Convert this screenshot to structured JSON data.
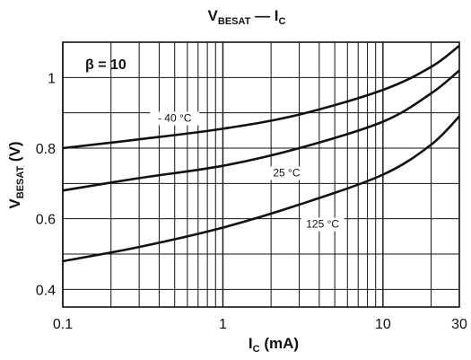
{
  "chart_data": {
    "type": "line",
    "title": {
      "main": "V",
      "sub": "BESAT",
      "sep": " — I",
      "sub2": "C"
    },
    "xlabel": {
      "main": "I",
      "sub": "C",
      "suffix": " (mA)"
    },
    "ylabel": {
      "main": "V",
      "sub": "BESAT",
      "suffix": " (V)"
    },
    "xscale": "log",
    "xlim": [
      0.1,
      30
    ],
    "ylim": [
      0.35,
      1.1
    ],
    "xticks": [
      0.1,
      1,
      10,
      30
    ],
    "xtick_labels": [
      "0.1",
      "1",
      "10",
      "30"
    ],
    "yticks": [
      0.4,
      0.6,
      0.8,
      1.0
    ],
    "ytick_labels": [
      "0.4",
      "0.6",
      "0.8",
      "1"
    ],
    "grid": true,
    "annotation": "β = 10",
    "series": [
      {
        "name": "- 40 °C",
        "points": [
          [
            0.1,
            0.8
          ],
          [
            0.3,
            0.825
          ],
          [
            1,
            0.855
          ],
          [
            3,
            0.895
          ],
          [
            10,
            0.965
          ],
          [
            20,
            1.03
          ],
          [
            30,
            1.09
          ]
        ]
      },
      {
        "name": "25 °C",
        "points": [
          [
            0.1,
            0.68
          ],
          [
            0.3,
            0.715
          ],
          [
            1,
            0.75
          ],
          [
            3,
            0.8
          ],
          [
            10,
            0.875
          ],
          [
            20,
            0.955
          ],
          [
            30,
            1.02
          ]
        ]
      },
      {
        "name": "125 °C",
        "points": [
          [
            0.1,
            0.48
          ],
          [
            0.3,
            0.52
          ],
          [
            1,
            0.575
          ],
          [
            3,
            0.64
          ],
          [
            10,
            0.725
          ],
          [
            20,
            0.81
          ],
          [
            30,
            0.89
          ]
        ]
      }
    ],
    "label_positions": [
      {
        "series": 0,
        "x": 0.5,
        "y": 0.875
      },
      {
        "series": 1,
        "x": 2.5,
        "y": 0.72
      },
      {
        "series": 2,
        "x": 4.2,
        "y": 0.575
      }
    ]
  },
  "colors": {
    "line": "#111111",
    "grid": "#111111",
    "background": "#ffffff"
  }
}
